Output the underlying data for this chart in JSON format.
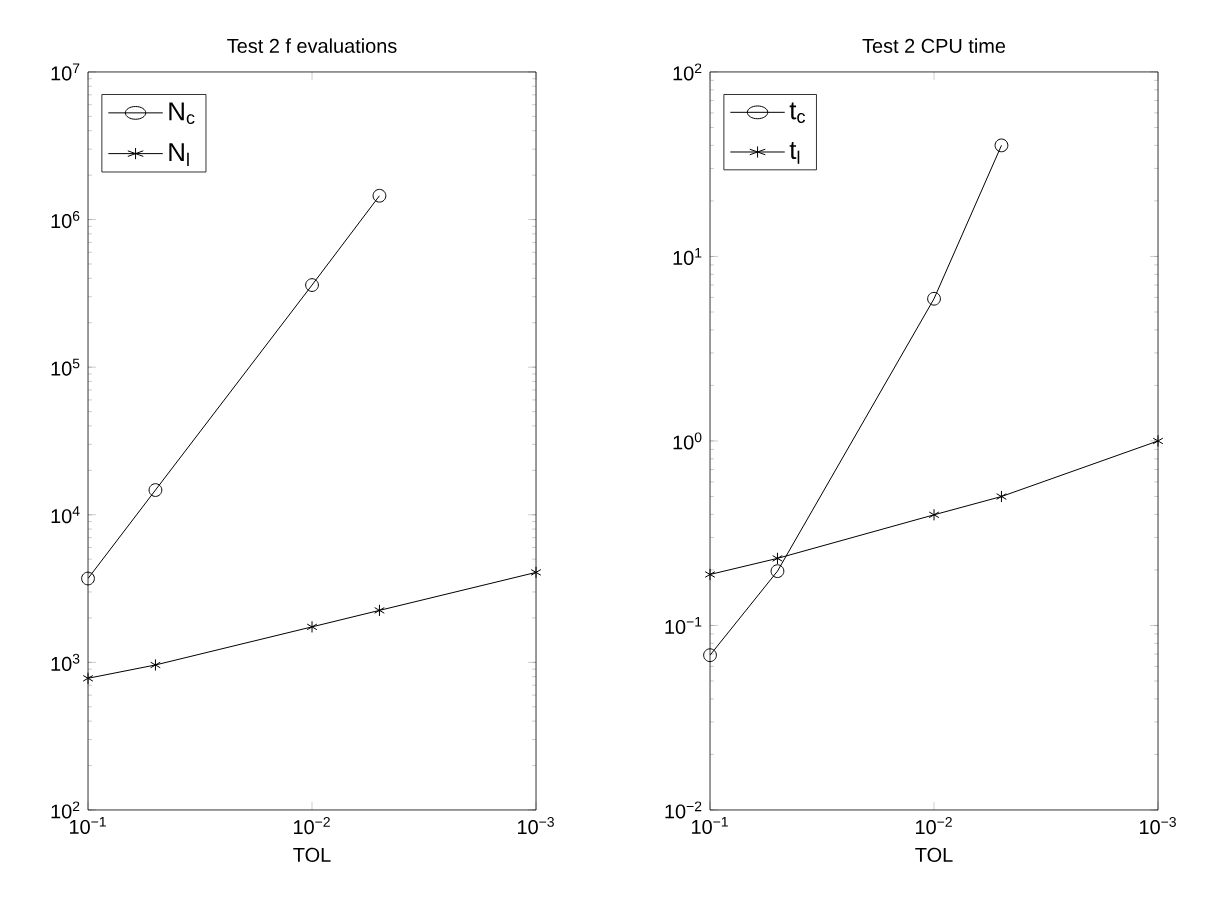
{
  "chart_data": [
    {
      "type": "line",
      "title": "Test 2 f evaluations",
      "xlabel": "TOL",
      "log": "xy",
      "legend": "top left",
      "grid": false,
      "xlim": [
        0.1,
        0.001
      ],
      "xticks": [
        {
          "value": 0.1,
          "label": "10$^{−1}$"
        },
        {
          "value": 0.01,
          "label": "10$^{−2}$"
        },
        {
          "value": 0.001,
          "label": "10$^{−3}$"
        }
      ],
      "ylim": [
        100,
        10000000
      ],
      "yticks": [
        {
          "value": 100,
          "label": "10$^{2}$"
        },
        {
          "value": 1000,
          "label": "10$^{3}$"
        },
        {
          "value": 10000,
          "label": "10$^{4}$"
        },
        {
          "value": 100000,
          "label": "10$^{5}$"
        },
        {
          "value": 1000000,
          "label": "10$^{6}$"
        },
        {
          "value": 10000000,
          "label": "10$^{7}$"
        }
      ],
      "x": [
        0.1,
        0.05,
        0.01,
        0.005,
        0.001
      ],
      "series": [
        {
          "name": "N$_{c}$",
          "color": "#000000",
          "marker": "circle",
          "values": [
            3700,
            14700,
            360000,
            1450000,
            null
          ]
        },
        {
          "name": "N$_{l}$",
          "color": "#000000",
          "marker": "cross",
          "values": [
            780,
            960,
            1740,
            2250,
            4070
          ]
        }
      ]
    },
    {
      "type": "line",
      "title": "Test 2 CPU time",
      "xlabel": "TOL",
      "log": "xy",
      "legend": "top left",
      "grid": false,
      "xlim": [
        0.1,
        0.001
      ],
      "xticks": [
        {
          "value": 0.1,
          "label": "10$^{−1}$"
        },
        {
          "value": 0.01,
          "label": "10$^{−2}$"
        },
        {
          "value": 0.001,
          "label": "10$^{−3}$"
        }
      ],
      "ylim": [
        0.01,
        100
      ],
      "yticks": [
        {
          "value": 0.01,
          "label": "10$^{−2}$"
        },
        {
          "value": 0.1,
          "label": "10$^{−1}$"
        },
        {
          "value": 1,
          "label": "10$^{0}$"
        },
        {
          "value": 10,
          "label": "10$^{1}$"
        },
        {
          "value": 100,
          "label": "10$^{2}$"
        }
      ],
      "x": [
        0.1,
        0.05,
        0.01,
        0.005,
        0.001
      ],
      "series": [
        {
          "name": "t$_{c}$",
          "color": "#000000",
          "marker": "circle",
          "values": [
            0.069,
            0.197,
            5.9,
            40,
            null
          ]
        },
        {
          "name": "t$_{l}$",
          "color": "#000000",
          "marker": "cross",
          "values": [
            0.189,
            0.231,
            0.398,
            0.5,
            1.0
          ]
        }
      ]
    }
  ]
}
